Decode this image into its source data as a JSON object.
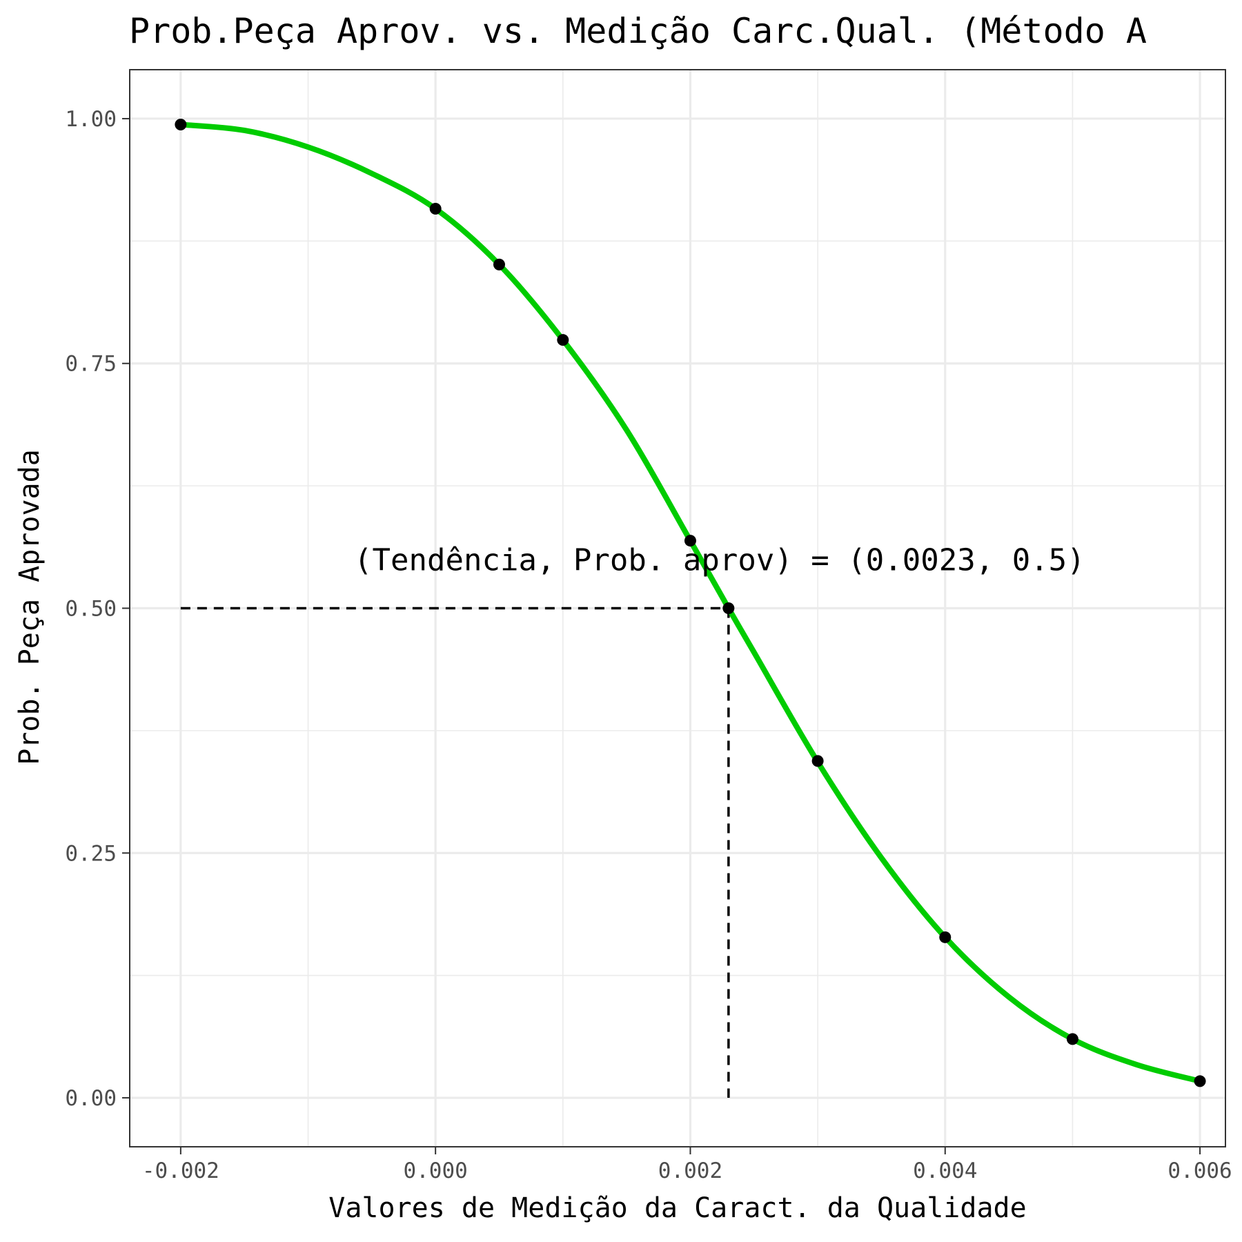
{
  "chart_data": {
    "type": "line",
    "title": "Prob.Peça Aprov. vs. Medição Carc.Qual. (Método A",
    "xlabel": "Valores de Medição da Caract. da Qualidade",
    "ylabel": "Prob. Peça Aprovada",
    "xlim": [
      -0.0024,
      0.0062
    ],
    "ylim": [
      -0.05,
      1.05
    ],
    "x_ticks": [
      -0.002,
      0.0,
      0.002,
      0.004,
      0.006
    ],
    "x_tick_labels": [
      "-0.002",
      "0.000",
      "0.002",
      "0.004",
      "0.006"
    ],
    "y_ticks": [
      0.0,
      0.25,
      0.5,
      0.75,
      1.0
    ],
    "y_tick_labels": [
      "0.00",
      "0.25",
      "0.50",
      "0.75",
      "1.00"
    ],
    "grid": true,
    "curve": {
      "color": "#00cc00",
      "x": [
        -0.002,
        -0.0015,
        -0.001,
        -0.0005,
        0.0,
        0.0005,
        0.001,
        0.0015,
        0.002,
        0.0023,
        0.0025,
        0.003,
        0.0035,
        0.004,
        0.0045,
        0.005,
        0.0055,
        0.006
      ],
      "y": [
        0.994,
        0.988,
        0.971,
        0.944,
        0.908,
        0.851,
        0.774,
        0.682,
        0.569,
        0.5,
        0.455,
        0.343,
        0.245,
        0.164,
        0.103,
        0.06,
        0.034,
        0.017
      ]
    },
    "points": {
      "color": "#000000",
      "x": [
        -0.002,
        0.0,
        0.0005,
        0.001,
        0.002,
        0.0023,
        0.003,
        0.004,
        0.005,
        0.006
      ],
      "y": [
        0.994,
        0.908,
        0.851,
        0.774,
        0.569,
        0.5,
        0.344,
        0.164,
        0.06,
        0.017
      ]
    },
    "guides": {
      "horizontal": {
        "x_from": -0.002,
        "x_to": 0.0023,
        "y": 0.5
      },
      "vertical": {
        "x": 0.0023,
        "y_from": 0.0,
        "y_to": 0.5
      }
    },
    "annotation": {
      "text": "(Tendência, Prob. aprov) = (0.0023, 0.5)",
      "x": 0.0023,
      "y": 0.55
    }
  }
}
